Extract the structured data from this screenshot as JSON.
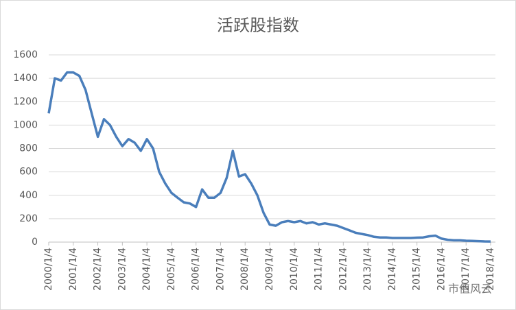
{
  "chart_data": {
    "type": "line",
    "title": "活跃股指数",
    "categories": [
      "2000/1/4",
      null,
      null,
      null,
      "2001/1/4",
      null,
      null,
      null,
      "2002/1/4",
      null,
      null,
      null,
      "2003/1/4",
      null,
      null,
      null,
      "2004/1/4",
      null,
      null,
      null,
      "2005/1/4",
      null,
      null,
      null,
      "2006/1/4",
      null,
      null,
      null,
      "2007/1/4",
      null,
      null,
      null,
      "2008/1/4",
      null,
      null,
      null,
      "2009/1/4",
      null,
      null,
      null,
      "2010/1/4",
      null,
      null,
      null,
      "2011/1/4",
      null,
      null,
      null,
      "2012/1/4",
      null,
      null,
      null,
      "2013/1/4",
      null,
      null,
      null,
      "2014/1/4",
      null,
      null,
      null,
      "2015/1/4",
      null,
      null,
      null,
      "2016/1/4",
      null,
      null,
      null,
      "2017/1/4",
      null,
      null,
      null,
      "2018/1/4"
    ],
    "values": [
      1100,
      1400,
      1380,
      1450,
      1450,
      1420,
      1300,
      1100,
      900,
      1050,
      1000,
      900,
      820,
      880,
      850,
      780,
      880,
      800,
      600,
      500,
      420,
      380,
      340,
      330,
      300,
      450,
      380,
      380,
      420,
      550,
      780,
      560,
      580,
      500,
      400,
      250,
      150,
      140,
      170,
      180,
      170,
      180,
      160,
      170,
      150,
      160,
      150,
      140,
      120,
      100,
      80,
      70,
      60,
      45,
      40,
      40,
      35,
      35,
      35,
      35,
      38,
      40,
      50,
      55,
      30,
      20,
      15,
      15,
      12,
      10,
      8,
      6,
      5
    ],
    "color": "#4a7ebb",
    "ylim": [
      0,
      1600
    ],
    "yticks": [
      0,
      200,
      400,
      600,
      800,
      1000,
      1200,
      1400,
      1600
    ],
    "grid": true,
    "watermark": "市值风云"
  }
}
